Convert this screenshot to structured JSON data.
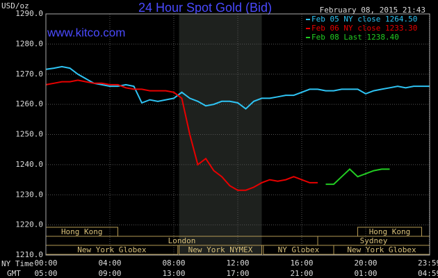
{
  "chart_data": {
    "type": "line",
    "title": "24 Hour Spot Gold (Bid)",
    "source": "www.kitco.com",
    "y_label": "USD/oz",
    "timestamp": "February 08, 2015 21:43",
    "x_row_label": "NY Time",
    "x2_row_label": "GMT",
    "x": [
      0,
      0.5,
      1,
      1.5,
      2,
      2.5,
      3,
      3.5,
      4,
      4.5,
      5,
      5.5,
      6,
      6.5,
      7,
      7.5,
      8,
      8.5,
      9,
      9.5,
      10,
      10.5,
      11,
      11.5,
      12,
      12.5,
      13,
      13.5,
      14,
      14.5,
      15,
      15.5,
      16,
      16.5,
      17,
      17.5,
      18,
      18.5,
      19,
      19.5,
      20,
      20.5,
      21,
      21.5,
      22,
      22.5,
      23,
      23.5,
      24
    ],
    "series": [
      {
        "name": "Feb 05 NY close 1264.50",
        "color": "#2ec4f4",
        "values": [
          1271.6,
          1272,
          1272.5,
          1272,
          1270,
          1268.5,
          1267,
          1266.5,
          1266,
          1266,
          1266.5,
          1266,
          1260.5,
          1261.5,
          1261,
          1261.5,
          1262,
          1264,
          1262,
          1261,
          1259.5,
          1260,
          1261,
          1261,
          1260.5,
          1258.5,
          1261,
          1262,
          1262,
          1262.5,
          1263,
          1263,
          1264,
          1265,
          1265,
          1264.5,
          1264.5,
          1265,
          1265,
          1265,
          1263.5,
          1264.5,
          1265,
          1265.5,
          1266,
          1265.5,
          1266,
          1266,
          1266
        ]
      },
      {
        "name": "Feb 06 NY close 1233.30",
        "color": "#e80000",
        "values": [
          1266.5,
          1267,
          1267.5,
          1267.5,
          1268,
          1267.5,
          1267,
          1267,
          1266.5,
          1266.5,
          1265.5,
          1265,
          1265,
          1264.5,
          1264.5,
          1264.5,
          1264,
          1262,
          1250,
          1240,
          1242,
          1238,
          1236,
          1233,
          1231.5,
          1231.5,
          1232.5,
          1234,
          1235,
          1234.5,
          1235,
          1236,
          1235,
          1234,
          1234,
          null,
          null,
          null,
          null,
          null,
          null,
          null,
          null,
          null,
          null,
          null,
          null,
          null,
          null
        ]
      },
      {
        "name": "Feb 08 Last 1238.40",
        "color": "#22cc22",
        "values": [
          null,
          null,
          null,
          null,
          null,
          null,
          null,
          null,
          null,
          null,
          null,
          null,
          null,
          null,
          null,
          null,
          null,
          null,
          null,
          null,
          null,
          null,
          null,
          null,
          null,
          null,
          null,
          null,
          null,
          null,
          null,
          null,
          null,
          null,
          null,
          1233.5,
          1233.5,
          1236,
          1238.5,
          1236,
          1237,
          1238,
          1238.5,
          1238.5,
          null,
          null,
          null,
          null,
          null
        ]
      }
    ],
    "xlim": [
      0,
      24
    ],
    "xticks": [
      {
        "value": 0,
        "label": "00:00"
      },
      {
        "value": 4,
        "label": "04:00"
      },
      {
        "value": 8,
        "label": "08:00"
      },
      {
        "value": 12,
        "label": "12:00"
      },
      {
        "value": 16,
        "label": "16:00"
      },
      {
        "value": 20,
        "label": "20:00"
      },
      {
        "value": 23.98,
        "label": "23:59"
      }
    ],
    "x2ticks": [
      {
        "value": 0,
        "label": "05:00"
      },
      {
        "value": 4,
        "label": "09:00"
      },
      {
        "value": 8,
        "label": "13:00"
      },
      {
        "value": 12,
        "label": "17:00"
      },
      {
        "value": 16,
        "label": "21:00"
      },
      {
        "value": 20,
        "label": "01:00"
      },
      {
        "value": 23.98,
        "label": "04:59"
      }
    ],
    "ylim": [
      1210,
      1290
    ],
    "yticks": [
      {
        "value": 1210,
        "label": "1210.0"
      },
      {
        "value": 1220,
        "label": "1220.0"
      },
      {
        "value": 1230,
        "label": "1230.0"
      },
      {
        "value": 1240,
        "label": "1240.0"
      },
      {
        "value": 1250,
        "label": "1250.0"
      },
      {
        "value": 1260,
        "label": "1260.0"
      },
      {
        "value": 1270,
        "label": "1270.0"
      },
      {
        "value": 1280,
        "label": "1280.0"
      },
      {
        "value": 1290,
        "label": "1290.0"
      }
    ],
    "grid": true,
    "sessions": [
      [
        {
          "label": "Hong Kong",
          "start": 0,
          "end": 4.5
        },
        {
          "label": "Hong Kong",
          "start": 19.5,
          "end": 23.5
        }
      ],
      [
        {
          "label": "London",
          "start": 0,
          "end": 17
        },
        {
          "label": "Sydney",
          "start": 17,
          "end": 24
        }
      ],
      [
        {
          "label": "New York Globex",
          "start": 0,
          "end": 8.25
        },
        {
          "label": "New York NYMEX",
          "start": 8.33,
          "end": 13.5,
          "shaded": true
        },
        {
          "label": "NY Globex",
          "start": 13.6,
          "end": 18
        },
        {
          "label": "New York Globex",
          "start": 18,
          "end": 24
        }
      ]
    ]
  }
}
